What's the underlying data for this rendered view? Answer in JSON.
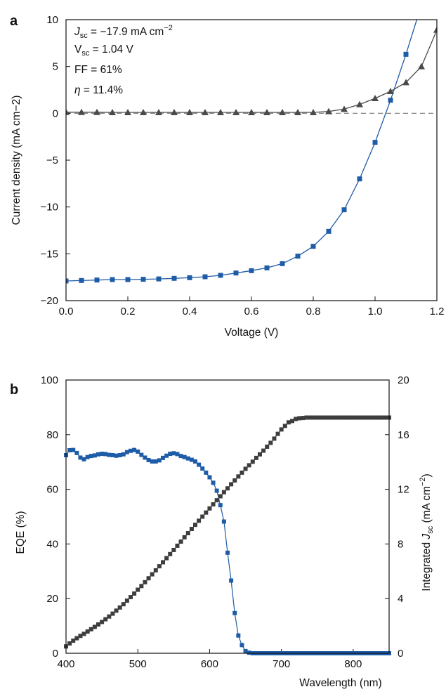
{
  "chart_data": [
    {
      "panel_label": "a",
      "type": "line",
      "xlabel": "Voltage (V)",
      "ylabel": "Current density (mA cm−2)",
      "xlim": [
        0,
        1.2
      ],
      "ylim": [
        -20,
        10
      ],
      "xticks": [
        0.0,
        0.2,
        0.4,
        0.6,
        0.8,
        1.0,
        1.2
      ],
      "xtick_labels": [
        "0.0",
        "0.2",
        "0.4",
        "0.6",
        "0.8",
        "1.0",
        "1.2"
      ],
      "yticks": [
        10,
        5,
        0,
        -5,
        -10,
        -15,
        -20
      ],
      "ytick_labels": [
        "10",
        "5",
        "0",
        "−5",
        "−10",
        "−15",
        "−20"
      ],
      "zero_line": true,
      "grid": false,
      "annotations": [
        {
          "name": "jsc",
          "text": "J_sc = −17.9 mA cm−2",
          "main": "J",
          "sub": "sc",
          "rest": " = −17.9 mA cm",
          "sup": "−2"
        },
        {
          "name": "vsc",
          "text": "V_sc = 1.04 V",
          "main": "V",
          "sub": "sc",
          "rest": " = 1.04 V"
        },
        {
          "name": "ff",
          "text": "FF = 61%"
        },
        {
          "name": "eta",
          "text": "η = 11.4%",
          "main": "η",
          "rest": " = 11.4%"
        }
      ],
      "series": [
        {
          "marker": "square",
          "color": "#1f5ca8",
          "points": [
            [
              0.0,
              -17.9
            ],
            [
              0.05,
              -17.85
            ],
            [
              0.1,
              -17.8
            ],
            [
              0.15,
              -17.75
            ],
            [
              0.2,
              -17.75
            ],
            [
              0.25,
              -17.72
            ],
            [
              0.3,
              -17.68
            ],
            [
              0.35,
              -17.62
            ],
            [
              0.4,
              -17.55
            ],
            [
              0.45,
              -17.45
            ],
            [
              0.5,
              -17.3
            ],
            [
              0.55,
              -17.05
            ],
            [
              0.6,
              -16.8
            ],
            [
              0.65,
              -16.5
            ],
            [
              0.7,
              -16.05
            ],
            [
              0.75,
              -15.25
            ],
            [
              0.8,
              -14.2
            ],
            [
              0.85,
              -12.6
            ],
            [
              0.9,
              -10.3
            ],
            [
              0.95,
              -7.0
            ],
            [
              1.0,
              -3.1
            ],
            [
              1.05,
              1.4
            ],
            [
              1.1,
              6.3
            ]
          ],
          "curve_end": [
            1.135,
            10
          ]
        },
        {
          "marker": "triangle",
          "color": "#4a4a4a",
          "points": [
            [
              0.0,
              0.12
            ],
            [
              0.05,
              0.12
            ],
            [
              0.1,
              0.12
            ],
            [
              0.15,
              0.1
            ],
            [
              0.2,
              0.1
            ],
            [
              0.25,
              0.1
            ],
            [
              0.3,
              0.1
            ],
            [
              0.35,
              0.1
            ],
            [
              0.4,
              0.1
            ],
            [
              0.45,
              0.1
            ],
            [
              0.5,
              0.1
            ],
            [
              0.55,
              0.1
            ],
            [
              0.6,
              0.1
            ],
            [
              0.65,
              0.1
            ],
            [
              0.7,
              0.1
            ],
            [
              0.75,
              0.1
            ],
            [
              0.8,
              0.1
            ],
            [
              0.85,
              0.2
            ],
            [
              0.9,
              0.45
            ],
            [
              0.95,
              0.95
            ],
            [
              1.0,
              1.6
            ],
            [
              1.05,
              2.35
            ],
            [
              1.1,
              3.3
            ],
            [
              1.15,
              5.0
            ],
            [
              1.2,
              8.9
            ]
          ]
        }
      ]
    },
    {
      "panel_label": "b",
      "type": "line",
      "xlabel": "Wavelength (nm)",
      "ylabel": "EQE (%)",
      "ylabel_right": {
        "main": "Integrated ",
        "italic": "J",
        "sub": "sc",
        "rest": " (mA cm",
        "sup": "−2",
        "end": ")"
      },
      "xlim": [
        400,
        850
      ],
      "ylim": [
        0,
        100
      ],
      "ylim_right": [
        0,
        20
      ],
      "xticks": [
        400,
        500,
        600,
        700,
        800
      ],
      "xtick_labels": [
        "400",
        "500",
        "600",
        "700",
        "800"
      ],
      "yticks": [
        0,
        20,
        40,
        60,
        80,
        100
      ],
      "ytick_labels": [
        "0",
        "20",
        "40",
        "60",
        "80",
        "100"
      ],
      "yticks_right": [
        0,
        4,
        8,
        12,
        16,
        20
      ],
      "ytick_labels_right": [
        "0",
        "4",
        "8",
        "12",
        "16",
        "20"
      ],
      "grid": false,
      "series": [
        {
          "axis": "left",
          "marker": "square",
          "color": "#1f5ca8",
          "x_start": 400,
          "x_step": 5,
          "values": [
            72.5,
            74.3,
            74.4,
            73.3,
            71.6,
            71.0,
            71.8,
            72.2,
            72.4,
            72.8,
            73.0,
            72.9,
            72.6,
            72.5,
            72.3,
            72.5,
            72.8,
            73.6,
            74.1,
            74.4,
            73.8,
            72.6,
            71.6,
            70.7,
            70.2,
            70.2,
            70.6,
            71.5,
            72.3,
            73.0,
            73.2,
            72.9,
            72.2,
            71.8,
            71.3,
            70.8,
            70.2,
            69.0,
            67.6,
            66.1,
            64.4,
            62.4,
            59.5,
            54.2,
            48.2,
            36.8,
            26.6,
            14.7,
            6.5,
            3.0,
            0.8,
            0.2,
            0,
            0,
            0,
            0,
            0,
            0,
            0,
            0,
            0,
            0,
            0,
            0,
            0,
            0,
            0,
            0,
            0,
            0,
            0,
            0,
            0,
            0,
            0,
            0,
            0,
            0,
            0,
            0,
            0,
            0,
            0,
            0,
            0,
            0,
            0,
            0,
            0,
            0,
            0
          ]
        },
        {
          "axis": "right",
          "marker": "square",
          "color": "#3d3d3d",
          "x_start": 400,
          "x_step": 5,
          "values": [
            0.5,
            0.72,
            0.92,
            1.1,
            1.27,
            1.42,
            1.59,
            1.76,
            1.93,
            2.11,
            2.29,
            2.49,
            2.69,
            2.9,
            3.12,
            3.35,
            3.59,
            3.85,
            4.11,
            4.37,
            4.65,
            4.92,
            5.2,
            5.49,
            5.78,
            6.07,
            6.37,
            6.66,
            6.96,
            7.26,
            7.56,
            7.87,
            8.17,
            8.49,
            8.79,
            9.1,
            9.4,
            9.7,
            10.0,
            10.3,
            10.6,
            10.9,
            11.2,
            11.49,
            11.79,
            12.07,
            12.37,
            12.65,
            12.94,
            13.22,
            13.5,
            13.76,
            14.02,
            14.3,
            14.56,
            14.83,
            15.12,
            15.4,
            15.71,
            16.06,
            16.38,
            16.64,
            16.9,
            17.0,
            17.15,
            17.2,
            17.22,
            17.25,
            17.25,
            17.25,
            17.25,
            17.25,
            17.25,
            17.25,
            17.25,
            17.25,
            17.25,
            17.25,
            17.25,
            17.25,
            17.25,
            17.25,
            17.25,
            17.25,
            17.25,
            17.25,
            17.25,
            17.25,
            17.25,
            17.25,
            17.25
          ]
        }
      ]
    }
  ]
}
